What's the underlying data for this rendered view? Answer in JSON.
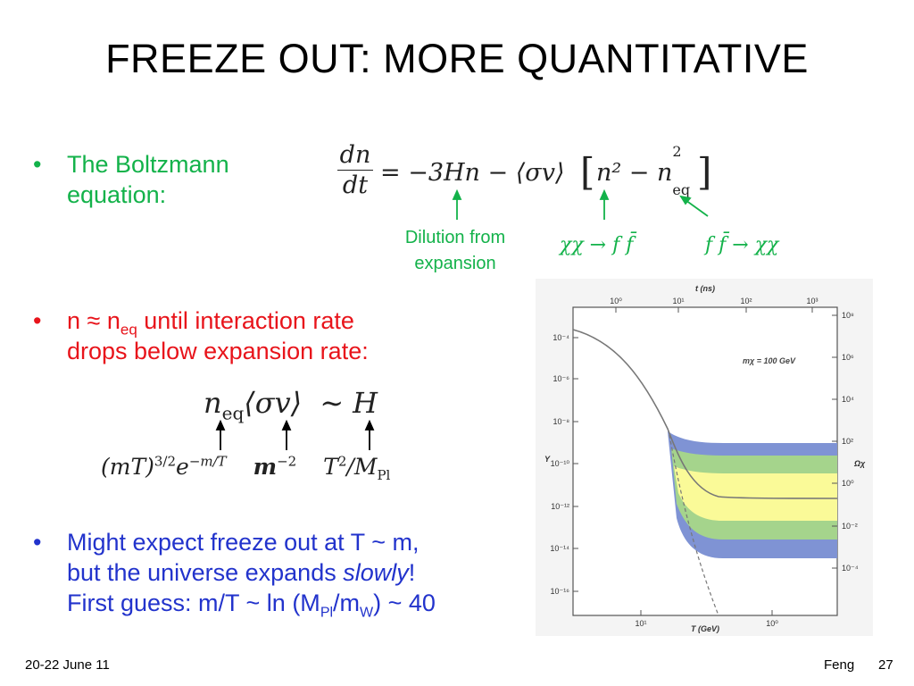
{
  "title": "FREEZE OUT: MORE QUANTITATIVE",
  "bullet1": {
    "marker": "•",
    "line1": "The Boltzmann",
    "line2": "equation:"
  },
  "boltzmann": {
    "frac_num": "dn",
    "frac_den": "dt",
    "eq_rest": "= −3Hn − ⟨σv⟩",
    "bracket_n2": "n² − n",
    "bracket_sub": "eq",
    "bracket_sup": "2"
  },
  "annotations": {
    "dilution_line1": "Dilution from",
    "dilution_line2": "expansion",
    "annihilation": "χχ → f f̄",
    "creation": "f f̄ → χχ"
  },
  "bullet2": {
    "marker": "•",
    "n_text": "n ≈ n",
    "n_sub": "eq",
    "line1_rest": " until interaction rate",
    "line2": "drops below expansion rate:"
  },
  "rate_eq": {
    "n": "n",
    "n_sub": "eq",
    "sv": "⟨σv⟩",
    "sim": "∼",
    "H": "H"
  },
  "rate_terms": {
    "t1_base": "(mT)",
    "t1_sup": "3/2",
    "t1_e": "e",
    "t1_esup": "−m/T",
    "t2_base": "m",
    "t2_sup": "−2",
    "t3": "T",
    "t3_sup": "2",
    "t3_div": "/M",
    "t3_sub": "Pl"
  },
  "bullet3": {
    "marker": "•",
    "line1": "Might expect freeze out at T ~ m,",
    "line2_a": "but the universe expands ",
    "line2_em": "slowly",
    "line2_b": "!",
    "line3_a": "First guess: m/T ~ ln (M",
    "line3_sub1": "Pl",
    "line3_mid": "/m",
    "line3_sub2": "W",
    "line3_b": ") ~ 40"
  },
  "figure": {
    "top_axis_label": "t (ns)",
    "top_ticks": [
      "10⁰",
      "10¹",
      "10²",
      "10³"
    ],
    "left_axis_label": "Y",
    "left_ticks": [
      "10⁻⁴",
      "10⁻⁶",
      "10⁻⁸",
      "10⁻¹⁰",
      "10⁻¹²",
      "10⁻¹⁴",
      "10⁻¹⁶"
    ],
    "right_axis_label": "Ωχ",
    "right_ticks": [
      "10⁸",
      "10⁶",
      "10⁴",
      "10²",
      "10⁰",
      "10⁻²",
      "10⁻⁴"
    ],
    "bottom_axis_label": "T (GeV)",
    "bottom_ticks": [
      "10¹",
      "10⁰"
    ],
    "legend": "mχ = 100 GeV",
    "colors": {
      "blue": "#7f93d4",
      "green": "#a5d48c",
      "yellow": "#fafa98",
      "curve": "#777777"
    }
  },
  "footer": {
    "date": "20-22 June 11",
    "author": "Feng",
    "page": "27"
  }
}
